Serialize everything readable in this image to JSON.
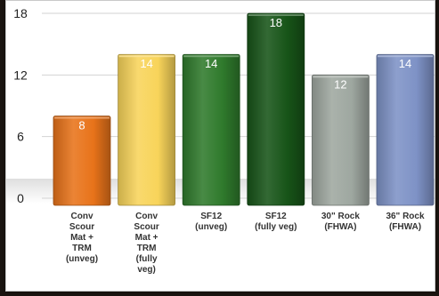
{
  "chart_data": {
    "type": "bar",
    "title": "",
    "xlabel": "",
    "ylabel": "",
    "ylim": [
      0,
      18
    ],
    "yticks": [
      0,
      6,
      12,
      18
    ],
    "grid": true,
    "legend": "none",
    "categories": [
      "Conv\nScour\nMat +\nTRM\n(unveg)",
      "Conv\nScour\nMat +\nTRM\n(fully\nveg)",
      "SF12\n(unveg)",
      "SF12\n(fully veg)",
      "30\" Rock\n(FHWA)",
      "36\" Rock\n(FHWA)"
    ],
    "values": [
      8,
      14,
      14,
      18,
      12,
      14
    ],
    "data_labels": [
      "8",
      "14",
      "14",
      "18",
      "12",
      "14"
    ],
    "colors": [
      "#e8731a",
      "#f8d45a",
      "#2f7a2c",
      "#175418",
      "#9ea7a0",
      "#7e92c6"
    ]
  }
}
